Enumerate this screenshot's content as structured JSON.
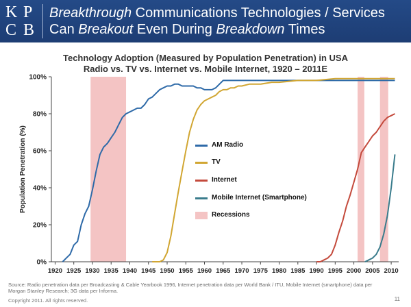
{
  "header": {
    "logo": "KPCB",
    "title_line1": [
      {
        "text": "Breakthrough",
        "italic": true
      },
      {
        "text": " Communications Technologies / Services",
        "italic": false
      }
    ],
    "title_line2": [
      {
        "text": "Can ",
        "italic": false
      },
      {
        "text": "Breakout",
        "italic": true
      },
      {
        "text": " Even During ",
        "italic": false
      },
      {
        "text": "Breakdown",
        "italic": true
      },
      {
        "text": " Times",
        "italic": false
      }
    ]
  },
  "chart_data": {
    "type": "line",
    "title_line1": "Technology Adoption (Measured by Population Penetration) in USA",
    "title_line2": "Radio vs. TV vs. Internet vs. Mobile Internet, 1920 – 2011E",
    "xlabel": "",
    "ylabel": "Population Penetration (%)",
    "xlim": [
      1919,
      2012
    ],
    "ylim": [
      0,
      100
    ],
    "xticks": [
      1920,
      1925,
      1930,
      1935,
      1940,
      1945,
      1950,
      1955,
      1960,
      1965,
      1970,
      1975,
      1980,
      1985,
      1990,
      1995,
      2000,
      2005,
      2010
    ],
    "yticks": [
      0,
      20,
      40,
      60,
      80,
      100
    ],
    "ytick_labels": [
      "0%",
      "20%",
      "40%",
      "60%",
      "80%",
      "100%"
    ],
    "grid": false,
    "recessions": [
      [
        1929.5,
        1939
      ],
      [
        2001,
        2002.8
      ],
      [
        2007,
        2009.2
      ]
    ],
    "series": [
      {
        "name": "AM Radio",
        "color": "#2e6aa8",
        "points": [
          [
            1922,
            0
          ],
          [
            1923,
            2
          ],
          [
            1924,
            4
          ],
          [
            1925,
            9
          ],
          [
            1926,
            11
          ],
          [
            1927,
            20
          ],
          [
            1928,
            26
          ],
          [
            1929,
            30
          ],
          [
            1930,
            39
          ],
          [
            1931,
            49
          ],
          [
            1932,
            58
          ],
          [
            1933,
            62
          ],
          [
            1934,
            64
          ],
          [
            1935,
            67
          ],
          [
            1936,
            70
          ],
          [
            1937,
            74
          ],
          [
            1938,
            78
          ],
          [
            1939,
            80
          ],
          [
            1940,
            81
          ],
          [
            1941,
            82
          ],
          [
            1942,
            83
          ],
          [
            1943,
            83
          ],
          [
            1944,
            85
          ],
          [
            1945,
            88
          ],
          [
            1946,
            89
          ],
          [
            1947,
            91
          ],
          [
            1948,
            93
          ],
          [
            1949,
            94
          ],
          [
            1950,
            95
          ],
          [
            1951,
            95
          ],
          [
            1952,
            96
          ],
          [
            1953,
            96
          ],
          [
            1954,
            95
          ],
          [
            1955,
            95
          ],
          [
            1956,
            95
          ],
          [
            1957,
            95
          ],
          [
            1958,
            94
          ],
          [
            1959,
            94
          ],
          [
            1960,
            93
          ],
          [
            1961,
            93
          ],
          [
            1962,
            93
          ],
          [
            1963,
            94
          ],
          [
            1964,
            96
          ],
          [
            1965,
            98
          ],
          [
            1975,
            98
          ],
          [
            1985,
            98
          ],
          [
            1990,
            98
          ],
          [
            2000,
            98
          ],
          [
            2011,
            98
          ]
        ]
      },
      {
        "name": "TV",
        "color": "#d1a632",
        "points": [
          [
            1946,
            0
          ],
          [
            1947,
            0
          ],
          [
            1948,
            0
          ],
          [
            1949,
            1
          ],
          [
            1950,
            5
          ],
          [
            1951,
            14
          ],
          [
            1952,
            26
          ],
          [
            1953,
            38
          ],
          [
            1954,
            49
          ],
          [
            1955,
            60
          ],
          [
            1956,
            70
          ],
          [
            1957,
            77
          ],
          [
            1958,
            82
          ],
          [
            1959,
            85
          ],
          [
            1960,
            87
          ],
          [
            1961,
            88
          ],
          [
            1962,
            89
          ],
          [
            1963,
            90
          ],
          [
            1964,
            92
          ],
          [
            1965,
            93
          ],
          [
            1966,
            93
          ],
          [
            1967,
            94
          ],
          [
            1968,
            94
          ],
          [
            1969,
            95
          ],
          [
            1970,
            95
          ],
          [
            1972,
            96
          ],
          [
            1975,
            96
          ],
          [
            1978,
            97
          ],
          [
            1980,
            97
          ],
          [
            1985,
            98
          ],
          [
            1990,
            98
          ],
          [
            1995,
            99
          ],
          [
            2000,
            99
          ],
          [
            2005,
            99
          ],
          [
            2011,
            99
          ]
        ]
      },
      {
        "name": "Internet",
        "color": "#c44a3c",
        "points": [
          [
            1990,
            0
          ],
          [
            1991,
            0
          ],
          [
            1992,
            1
          ],
          [
            1993,
            2
          ],
          [
            1994,
            4
          ],
          [
            1995,
            9
          ],
          [
            1996,
            16
          ],
          [
            1997,
            22
          ],
          [
            1998,
            30
          ],
          [
            1999,
            36
          ],
          [
            2000,
            43
          ],
          [
            2001,
            50
          ],
          [
            2002,
            59
          ],
          [
            2003,
            62
          ],
          [
            2004,
            65
          ],
          [
            2005,
            68
          ],
          [
            2006,
            70
          ],
          [
            2007,
            73
          ],
          [
            2008,
            76
          ],
          [
            2009,
            78
          ],
          [
            2010,
            79
          ],
          [
            2011,
            80
          ]
        ]
      },
      {
        "name": "Mobile Internet (Smartphone)",
        "color": "#3a7c8c",
        "points": [
          [
            2003,
            0
          ],
          [
            2004,
            1
          ],
          [
            2005,
            2
          ],
          [
            2006,
            4
          ],
          [
            2007,
            8
          ],
          [
            2008,
            15
          ],
          [
            2009,
            25
          ],
          [
            2010,
            40
          ],
          [
            2011,
            58
          ]
        ]
      }
    ],
    "legend_recession_label": "Recessions"
  },
  "footer": {
    "source_line1": "Source: Radio penetration data per Broadcasting & Cable Yearbook 1996, Internet penetration data per World Bank / ITU, Mobile Internet (smartphone) data per",
    "source_line2": "Morgan Stanley Research; 3G data per Informa.",
    "copyright": "Copyright 2011. All rights reserved.",
    "page": "11"
  }
}
